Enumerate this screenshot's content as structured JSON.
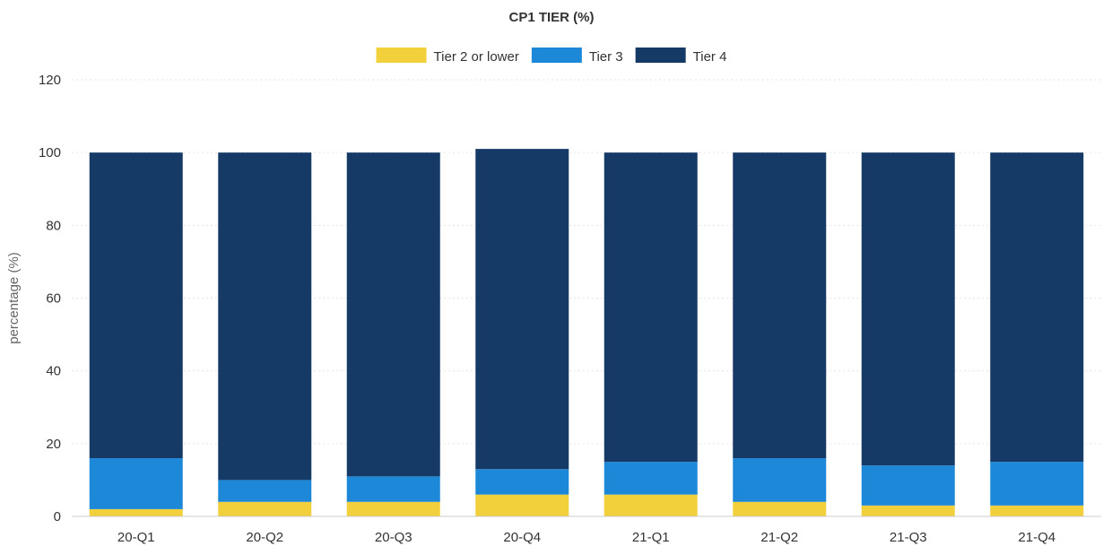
{
  "chart_data": {
    "type": "bar",
    "stacked": true,
    "title": "CP1 TIER (%)",
    "xlabel": "",
    "ylabel": "percentage (%)",
    "ylim": [
      0,
      120
    ],
    "yticks": [
      0,
      20,
      40,
      60,
      80,
      100,
      120
    ],
    "grid": true,
    "legend_position": "top-center",
    "categories": [
      "20-Q1",
      "20-Q2",
      "20-Q3",
      "20-Q4",
      "21-Q1",
      "21-Q2",
      "21-Q3",
      "21-Q4"
    ],
    "series": [
      {
        "name": "Tier 2 or lower",
        "color": "#f2d03b",
        "values": [
          2,
          4,
          4,
          6,
          6,
          4,
          3,
          3
        ]
      },
      {
        "name": "Tier 3",
        "color": "#1e88d8",
        "values": [
          14,
          6,
          7,
          7,
          9,
          12,
          11,
          12
        ]
      },
      {
        "name": "Tier 4",
        "color": "#163a66",
        "values": [
          84,
          90,
          89,
          88,
          85,
          84,
          86,
          85
        ]
      }
    ]
  }
}
